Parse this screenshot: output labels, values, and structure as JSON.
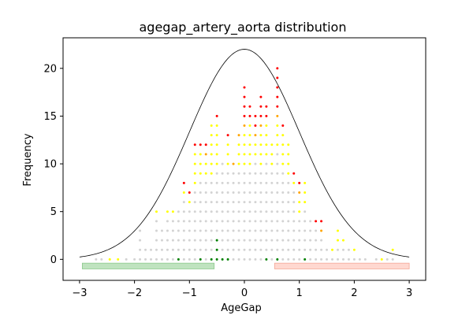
{
  "chart_data": {
    "type": "scatter",
    "title": "agegap_artery_aorta distribution",
    "xlabel": "AgeGap",
    "ylabel": "Frequency",
    "xlim": [
      -3.3,
      3.3
    ],
    "ylim": [
      -2.2,
      23.2
    ],
    "xticks": [
      -3,
      -2,
      -1,
      0,
      1,
      2,
      3
    ],
    "yticks": [
      0,
      5,
      10,
      15,
      20
    ],
    "grid": false,
    "colors": {
      "normal_curve": "#000000",
      "dot_gray": "#d3d3d3",
      "dot_yellow": "#ffff00",
      "dot_orange": "#ffa500",
      "dot_red": "#ff0000",
      "dot_green": "#008000",
      "band_green": "#bfe3bf",
      "band_red": "#ffd8d0"
    },
    "normal_curve": {
      "mean": 0,
      "std": 1,
      "peak": 22,
      "x_range": [
        -3,
        3
      ]
    },
    "bands": [
      {
        "color": "green",
        "x": [
          -2.95,
          -0.55
        ],
        "y": [
          -1.0,
          -0.4
        ]
      },
      {
        "color": "red",
        "x": [
          0.55,
          3.0
        ],
        "y": [
          -1.0,
          -0.4
        ]
      }
    ],
    "dot_columns": [
      {
        "x": -2.7,
        "gray": 1,
        "yellow": 0,
        "orange": 0,
        "red": 0,
        "green": 0
      },
      {
        "x": -2.6,
        "gray": 1,
        "yellow": 0,
        "orange": 0,
        "red": 0,
        "green": 0
      },
      {
        "x": -2.45,
        "gray": 0,
        "yellow": 1,
        "orange": 0,
        "red": 0,
        "green": 0
      },
      {
        "x": -2.3,
        "gray": 0,
        "yellow": 1,
        "orange": 0,
        "red": 0,
        "green": 0
      },
      {
        "x": -2.15,
        "gray": 1,
        "yellow": 0,
        "orange": 0,
        "red": 0,
        "green": 0
      },
      {
        "x": -2.0,
        "gray": 1,
        "yellow": 0,
        "orange": 0,
        "red": 0,
        "green": 0
      },
      {
        "x": -1.9,
        "gray": 4,
        "yellow": 0,
        "orange": 0,
        "red": 0,
        "green": 0
      },
      {
        "x": -1.8,
        "gray": 2,
        "yellow": 0,
        "orange": 0,
        "red": 0,
        "green": 0
      },
      {
        "x": -1.7,
        "gray": 2,
        "yellow": 0,
        "orange": 0,
        "red": 0,
        "green": 0
      },
      {
        "x": -1.6,
        "gray": 5,
        "yellow": 1,
        "orange": 0,
        "red": 0,
        "green": 0
      },
      {
        "x": -1.5,
        "gray": 4,
        "yellow": 0,
        "orange": 0,
        "red": 0,
        "green": 0
      },
      {
        "x": -1.4,
        "gray": 5,
        "yellow": 1,
        "orange": 0,
        "red": 0,
        "green": 0
      },
      {
        "x": -1.3,
        "gray": 5,
        "yellow": 1,
        "orange": 0,
        "red": 0,
        "green": 0
      },
      {
        "x": -1.2,
        "gray": 5,
        "yellow": 0,
        "orange": 0,
        "red": 0,
        "green": 1
      },
      {
        "x": -1.1,
        "gray": 7,
        "yellow": 1,
        "orange": 0,
        "red": 1,
        "green": 0
      },
      {
        "x": -1.0,
        "gray": 6,
        "yellow": 1,
        "orange": 0,
        "red": 1,
        "green": 0
      },
      {
        "x": -0.9,
        "gray": 8,
        "yellow": 4,
        "orange": 0,
        "red": 1,
        "green": 0
      },
      {
        "x": -0.8,
        "gray": 8,
        "yellow": 3,
        "orange": 0,
        "red": 1,
        "green": 1
      },
      {
        "x": -0.7,
        "gray": 9,
        "yellow": 2,
        "orange": 1,
        "red": 1,
        "green": 0
      },
      {
        "x": -0.6,
        "gray": 8,
        "yellow": 6,
        "orange": 0,
        "red": 0,
        "green": 1
      },
      {
        "x": -0.5,
        "gray": 7,
        "yellow": 5,
        "orange": 0,
        "red": 1,
        "green": 3
      },
      {
        "x": -0.4,
        "gray": 10,
        "yellow": 0,
        "orange": 0,
        "red": 0,
        "green": 1
      },
      {
        "x": -0.3,
        "gray": 9,
        "yellow": 3,
        "orange": 0,
        "red": 1,
        "green": 1
      },
      {
        "x": -0.2,
        "gray": 10,
        "yellow": 0,
        "orange": 1,
        "red": 0,
        "green": 0
      },
      {
        "x": -0.1,
        "gray": 10,
        "yellow": 3,
        "orange": 1,
        "red": 0,
        "green": 0
      },
      {
        "x": 0.0,
        "gray": 10,
        "yellow": 4,
        "orange": 1,
        "red": 4,
        "green": 0
      },
      {
        "x": 0.1,
        "gray": 10,
        "yellow": 5,
        "orange": 0,
        "red": 2,
        "green": 0
      },
      {
        "x": 0.2,
        "gray": 11,
        "yellow": 2,
        "orange": 1,
        "red": 2,
        "green": 0
      },
      {
        "x": 0.3,
        "gray": 10,
        "yellow": 4,
        "orange": 1,
        "red": 3,
        "green": 0
      },
      {
        "x": 0.4,
        "gray": 10,
        "yellow": 4,
        "orange": 0,
        "red": 2,
        "green": 1
      },
      {
        "x": 0.5,
        "gray": 10,
        "yellow": 3,
        "orange": 0,
        "red": 0,
        "green": 0
      },
      {
        "x": 0.6,
        "gray": 11,
        "yellow": 3,
        "orange": 1,
        "red": 5,
        "green": 1
      },
      {
        "x": 0.7,
        "gray": 10,
        "yellow": 4,
        "orange": 0,
        "red": 1,
        "green": 0
      },
      {
        "x": 0.8,
        "gray": 9,
        "yellow": 4,
        "orange": 0,
        "red": 0,
        "green": 0
      },
      {
        "x": 0.9,
        "gray": 8,
        "yellow": 1,
        "orange": 0,
        "red": 1,
        "green": 0
      },
      {
        "x": 1.0,
        "gray": 5,
        "yellow": 2,
        "orange": 1,
        "red": 1,
        "green": 0
      },
      {
        "x": 1.1,
        "gray": 5,
        "yellow": 3,
        "orange": 0,
        "red": 0,
        "green": 1
      },
      {
        "x": 1.2,
        "gray": 5,
        "yellow": 0,
        "orange": 0,
        "red": 0,
        "green": 0
      },
      {
        "x": 1.3,
        "gray": 4,
        "yellow": 0,
        "orange": 0,
        "red": 1,
        "green": 0
      },
      {
        "x": 1.4,
        "gray": 3,
        "yellow": 0,
        "orange": 1,
        "red": 1,
        "green": 0
      },
      {
        "x": 1.5,
        "gray": 2,
        "yellow": 0,
        "orange": 0,
        "red": 0,
        "green": 0
      },
      {
        "x": 1.6,
        "gray": 1,
        "yellow": 1,
        "orange": 0,
        "red": 0,
        "green": 0
      },
      {
        "x": 1.7,
        "gray": 2,
        "yellow": 2,
        "orange": 0,
        "red": 0,
        "green": 0
      },
      {
        "x": 1.8,
        "gray": 2,
        "yellow": 1,
        "orange": 0,
        "red": 0,
        "green": 0
      },
      {
        "x": 1.9,
        "gray": 2,
        "yellow": 0,
        "orange": 0,
        "red": 0,
        "green": 0
      },
      {
        "x": 2.0,
        "gray": 1,
        "yellow": 1,
        "orange": 0,
        "red": 0,
        "green": 0
      },
      {
        "x": 2.1,
        "gray": 1,
        "yellow": 0,
        "orange": 0,
        "red": 0,
        "green": 0
      },
      {
        "x": 2.2,
        "gray": 1,
        "yellow": 0,
        "orange": 0,
        "red": 0,
        "green": 0
      },
      {
        "x": 2.4,
        "gray": 1,
        "yellow": 0,
        "orange": 0,
        "red": 0,
        "green": 0
      },
      {
        "x": 2.5,
        "gray": 0,
        "yellow": 1,
        "orange": 0,
        "red": 0,
        "green": 0
      },
      {
        "x": 2.6,
        "gray": 1,
        "yellow": 0,
        "orange": 0,
        "red": 0,
        "green": 0
      },
      {
        "x": 2.7,
        "gray": 1,
        "yellow": 1,
        "orange": 0,
        "red": 0,
        "green": 0
      }
    ]
  }
}
